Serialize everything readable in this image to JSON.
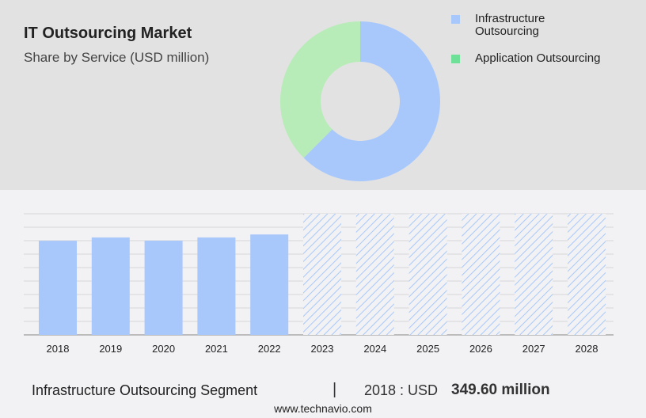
{
  "header": {
    "title": "IT Outsourcing Market",
    "subtitle": "Share by Service (USD million)"
  },
  "colors": {
    "infrastructure": "#a8c8fc",
    "application_donut": "#b7ecb8",
    "application_legend": "#6fe098",
    "grid": "#d6d6d8",
    "axis": "#aaaaaa"
  },
  "chart_data": [
    {
      "type": "pie",
      "donut": true,
      "title": "Share by Service (USD million)",
      "legend_position": "right",
      "slices": [
        {
          "label": "Infrastructure Outsourcing",
          "share": 62.5
        },
        {
          "label": "Application Outsourcing",
          "share": 37.5
        }
      ]
    },
    {
      "type": "bar",
      "title": "Infrastructure Outsourcing Segment",
      "xlabel": "",
      "ylabel": "",
      "ylim": [
        0,
        450
      ],
      "grid": true,
      "categories": [
        "2018",
        "2019",
        "2020",
        "2021",
        "2022",
        "2023",
        "2024",
        "2025",
        "2026",
        "2027",
        "2028"
      ],
      "values": [
        349.6,
        362,
        350,
        362,
        373,
        null,
        null,
        null,
        null,
        null,
        null
      ],
      "forecast": [
        false,
        false,
        false,
        false,
        false,
        true,
        true,
        true,
        true,
        true,
        true
      ]
    }
  ],
  "legend": {
    "items": [
      "Infrastructure Outsourcing",
      "Application Outsourcing"
    ]
  },
  "legend_lines": {
    "infra_1": "Infrastructure",
    "infra_2": "Outsourcing",
    "app": "Application Outsourcing"
  },
  "footer": {
    "segment": "Infrastructure Outsourcing Segment",
    "separator": "|",
    "year_label": "2018 : USD",
    "value": "349.60 million",
    "website": "www.technavio.com"
  }
}
